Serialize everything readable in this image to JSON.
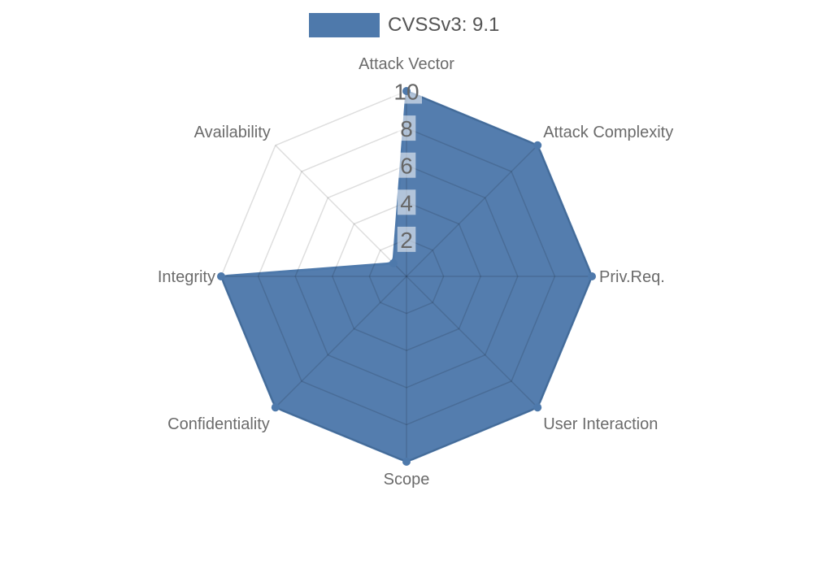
{
  "legend": {
    "label": "CVSSv3: 9.1",
    "swatch_color": "#4e79ab"
  },
  "chart_data": {
    "type": "radar",
    "title": "CVSSv3: 9.1",
    "categories": [
      "Attack Vector",
      "Attack Complexity",
      "Priv.Req.",
      "User Interaction",
      "Scope",
      "Confidentiality",
      "Integrity",
      "Availability"
    ],
    "series": [
      {
        "name": "CVSSv3: 9.1",
        "values": [
          10,
          10,
          10,
          10,
          10,
          10,
          10,
          1
        ],
        "color": "#4e79ab"
      }
    ],
    "ticks": [
      2,
      4,
      6,
      8,
      10
    ],
    "tick_axis": "Attack Vector",
    "rlim": [
      0,
      10
    ],
    "grid": "on",
    "legend_position": "top-center"
  },
  "colors": {
    "accent": "#4e79ab",
    "series_fill": "#4e79ab",
    "grid_line": "rgba(0,0,0,0.13)",
    "axis_label_text": "#6b6b6b",
    "tick_text": "#666666",
    "tick_box": "rgba(255,255,255,0.55)",
    "legend_text": "#555555",
    "background": "#ffffff"
  }
}
